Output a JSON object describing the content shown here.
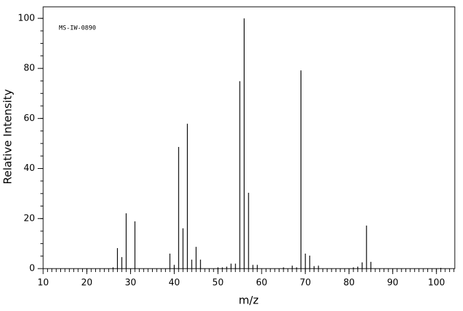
{
  "chart_data": {
    "type": "stem",
    "annotation": "MS-IW-0890",
    "x_label": "m/z",
    "y_label": "Relative Intensity",
    "xlim": [
      10,
      104.2
    ],
    "ylim": [
      0,
      104.6
    ],
    "xticks": [
      10,
      20,
      30,
      40,
      50,
      60,
      70,
      80,
      90,
      100
    ],
    "yticks": [
      0,
      20,
      40,
      60,
      80,
      100
    ],
    "color": "#000000",
    "x": [
      26,
      27,
      28,
      29,
      31,
      39,
      40,
      41,
      42,
      43,
      44,
      45,
      46,
      50,
      51,
      52,
      53,
      54,
      55,
      56,
      57,
      58,
      59,
      65,
      67,
      68,
      69,
      70,
      71,
      72,
      73,
      81,
      82,
      83,
      84,
      85,
      101
    ],
    "values": [
      0.5,
      8.2,
      4.6,
      22.1,
      18.9,
      6.0,
      1.5,
      48.6,
      16.1,
      57.9,
      3.6,
      8.7,
      3.6,
      0.5,
      0.5,
      0.8,
      2.0,
      2.0,
      74.9,
      100,
      30.3,
      1.5,
      1.5,
      0.5,
      1.2,
      0.5,
      79.2,
      6.0,
      5.2,
      1.0,
      1.2,
      0.5,
      0.8,
      2.5,
      17.2,
      2.7,
      0.3
    ]
  }
}
